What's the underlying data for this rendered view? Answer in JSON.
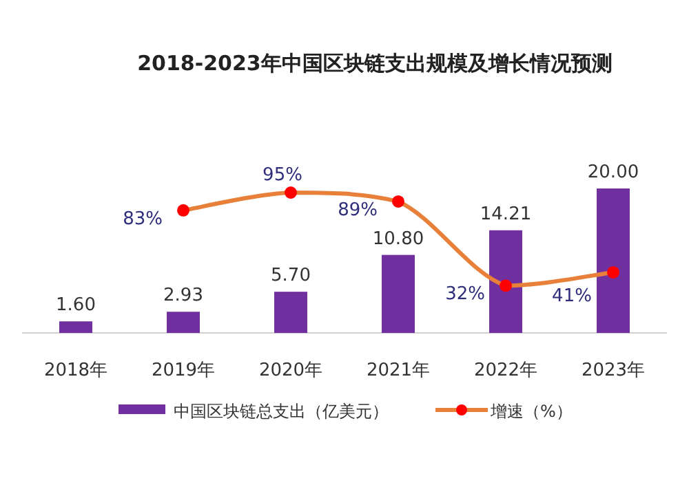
{
  "chart_data": {
    "type": "bar",
    "title": "2018-2023年中国区块链支出规模及增长情况预测",
    "categories": [
      "2018年",
      "2019年",
      "2020年",
      "2021年",
      "2022年",
      "2023年"
    ],
    "series": [
      {
        "name": "中国区块链总支出（亿美元）",
        "color": "#7030a0",
        "values": [
          1.6,
          2.93,
          5.7,
          10.8,
          14.21,
          20.0
        ],
        "value_labels": [
          "1.60",
          "2.93",
          "5.70",
          "10.80",
          "14.21",
          "20.00"
        ]
      },
      {
        "name": "增速（%）",
        "type": "line",
        "axis": "y2",
        "color": "#e8803a",
        "marker": "circle",
        "values": [
          null,
          83,
          95,
          89,
          32,
          41
        ],
        "value_labels": [
          null,
          "83%",
          "95%",
          "89%",
          "32%",
          "41%"
        ]
      }
    ],
    "legend": "bottom",
    "grid": false
  }
}
